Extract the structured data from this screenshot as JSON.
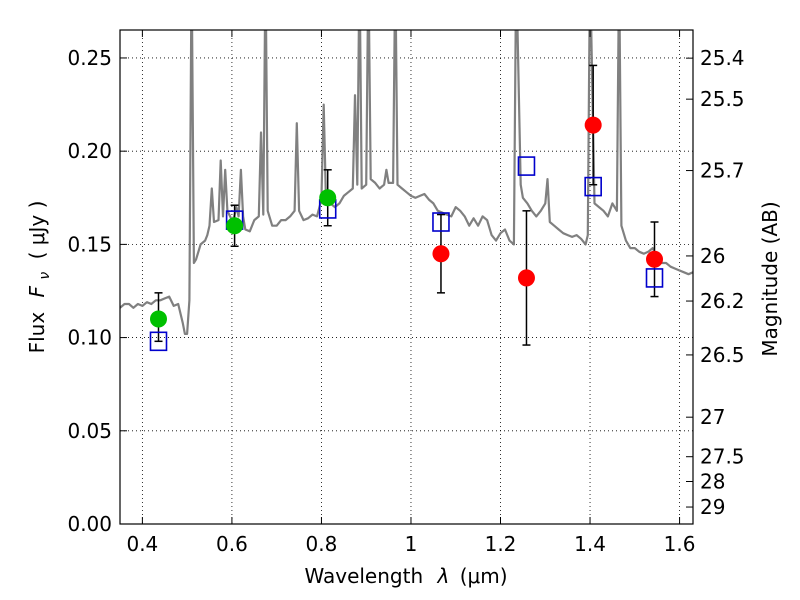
{
  "chart_data": {
    "type": "scatter",
    "xlabel_text": "Wavelength",
    "xlabel_symbol": "λ",
    "xlabel_unit": "(μm)",
    "ylabel_text": "Flux",
    "ylabel_symbol": "F",
    "ylabel_symbol_sub": "ν",
    "ylabel_unit": "( μJy )",
    "y2label": "Magnitude (AB)",
    "xlim": [
      0.35,
      1.63
    ],
    "ylim": [
      0.0,
      0.265
    ],
    "grid": true,
    "legend": "none",
    "x_ticks": [
      0.4,
      0.6,
      0.8,
      1.0,
      1.2,
      1.4,
      1.6
    ],
    "x_tick_labels": [
      "0.4",
      "0.6",
      "0.8",
      "1",
      "1.2",
      "1.4",
      "1.6"
    ],
    "y_ticks": [
      0.0,
      0.05,
      0.1,
      0.15,
      0.2,
      0.25
    ],
    "y_tick_labels": [
      "0.00",
      "0.05",
      "0.10",
      "0.15",
      "0.20",
      "0.25"
    ],
    "y2_ticks": [
      {
        "label": "25.4",
        "flux": 0.2499
      },
      {
        "label": "25.5",
        "flux": 0.2279
      },
      {
        "label": "25.7",
        "flux": 0.1896
      },
      {
        "label": "26",
        "flux": 0.1438
      },
      {
        "label": "26.2",
        "flux": 0.1196
      },
      {
        "label": "26.5",
        "flux": 0.0907
      },
      {
        "label": "27",
        "flux": 0.0573
      },
      {
        "label": "27.5",
        "flux": 0.0361
      },
      {
        "label": "28",
        "flux": 0.0228
      },
      {
        "label": "29",
        "flux": 0.0091
      }
    ],
    "series": [
      {
        "kind": "model-spectrum",
        "color": "#808080",
        "points": [
          [
            0.35,
            0.116
          ],
          [
            0.36,
            0.118
          ],
          [
            0.37,
            0.118
          ],
          [
            0.38,
            0.116
          ],
          [
            0.39,
            0.118
          ],
          [
            0.4,
            0.117
          ],
          [
            0.41,
            0.119
          ],
          [
            0.42,
            0.118
          ],
          [
            0.43,
            0.12
          ],
          [
            0.44,
            0.12
          ],
          [
            0.45,
            0.121
          ],
          [
            0.46,
            0.122
          ],
          [
            0.47,
            0.117
          ],
          [
            0.48,
            0.118
          ],
          [
            0.49,
            0.108
          ],
          [
            0.495,
            0.102
          ],
          [
            0.5,
            0.102
          ],
          [
            0.505,
            0.12
          ],
          [
            0.51,
            0.3
          ],
          [
            0.515,
            0.14
          ],
          [
            0.52,
            0.142
          ],
          [
            0.53,
            0.15
          ],
          [
            0.54,
            0.152
          ],
          [
            0.545,
            0.155
          ],
          [
            0.55,
            0.16
          ],
          [
            0.555,
            0.18
          ],
          [
            0.56,
            0.162
          ],
          [
            0.57,
            0.163
          ],
          [
            0.575,
            0.195
          ],
          [
            0.58,
            0.165
          ],
          [
            0.585,
            0.19
          ],
          [
            0.59,
            0.168
          ],
          [
            0.6,
            0.163
          ],
          [
            0.605,
            0.165
          ],
          [
            0.61,
            0.17
          ],
          [
            0.615,
            0.165
          ],
          [
            0.62,
            0.19
          ],
          [
            0.625,
            0.165
          ],
          [
            0.63,
            0.158
          ],
          [
            0.64,
            0.157
          ],
          [
            0.65,
            0.163
          ],
          [
            0.66,
            0.165
          ],
          [
            0.665,
            0.21
          ],
          [
            0.67,
            0.166
          ],
          [
            0.675,
            0.3
          ],
          [
            0.68,
            0.168
          ],
          [
            0.69,
            0.16
          ],
          [
            0.7,
            0.16
          ],
          [
            0.71,
            0.163
          ],
          [
            0.72,
            0.163
          ],
          [
            0.73,
            0.165
          ],
          [
            0.74,
            0.168
          ],
          [
            0.745,
            0.215
          ],
          [
            0.75,
            0.168
          ],
          [
            0.76,
            0.163
          ],
          [
            0.77,
            0.164
          ],
          [
            0.78,
            0.166
          ],
          [
            0.79,
            0.165
          ],
          [
            0.8,
            0.174
          ],
          [
            0.805,
            0.225
          ],
          [
            0.81,
            0.175
          ],
          [
            0.82,
            0.172
          ],
          [
            0.83,
            0.17
          ],
          [
            0.84,
            0.172
          ],
          [
            0.85,
            0.176
          ],
          [
            0.86,
            0.178
          ],
          [
            0.87,
            0.18
          ],
          [
            0.875,
            0.23
          ],
          [
            0.88,
            0.182
          ],
          [
            0.885,
            0.3
          ],
          [
            0.89,
            0.18
          ],
          [
            0.9,
            0.182
          ],
          [
            0.905,
            0.3
          ],
          [
            0.91,
            0.185
          ],
          [
            0.92,
            0.183
          ],
          [
            0.93,
            0.18
          ],
          [
            0.94,
            0.182
          ],
          [
            0.945,
            0.19
          ],
          [
            0.95,
            0.183
          ],
          [
            0.96,
            0.183
          ],
          [
            0.965,
            0.3
          ],
          [
            0.97,
            0.182
          ],
          [
            0.98,
            0.18
          ],
          [
            0.99,
            0.178
          ],
          [
            1.0,
            0.176
          ],
          [
            1.01,
            0.175
          ],
          [
            1.02,
            0.176
          ],
          [
            1.03,
            0.177
          ],
          [
            1.04,
            0.174
          ],
          [
            1.05,
            0.172
          ],
          [
            1.06,
            0.168
          ],
          [
            1.07,
            0.167
          ],
          [
            1.08,
            0.166
          ],
          [
            1.09,
            0.165
          ],
          [
            1.1,
            0.17
          ],
          [
            1.11,
            0.168
          ],
          [
            1.12,
            0.165
          ],
          [
            1.13,
            0.16
          ],
          [
            1.14,
            0.164
          ],
          [
            1.15,
            0.16
          ],
          [
            1.16,
            0.165
          ],
          [
            1.17,
            0.163
          ],
          [
            1.18,
            0.155
          ],
          [
            1.19,
            0.152
          ],
          [
            1.2,
            0.156
          ],
          [
            1.21,
            0.158
          ],
          [
            1.22,
            0.152
          ],
          [
            1.23,
            0.15
          ],
          [
            1.235,
            0.3
          ],
          [
            1.245,
            0.182
          ],
          [
            1.25,
            0.175
          ],
          [
            1.26,
            0.172
          ],
          [
            1.27,
            0.168
          ],
          [
            1.28,
            0.165
          ],
          [
            1.29,
            0.168
          ],
          [
            1.3,
            0.172
          ],
          [
            1.305,
            0.185
          ],
          [
            1.31,
            0.162
          ],
          [
            1.32,
            0.16
          ],
          [
            1.33,
            0.158
          ],
          [
            1.34,
            0.156
          ],
          [
            1.35,
            0.155
          ],
          [
            1.36,
            0.154
          ],
          [
            1.37,
            0.155
          ],
          [
            1.38,
            0.153
          ],
          [
            1.39,
            0.15
          ],
          [
            1.395,
            0.155
          ],
          [
            1.4,
            0.3
          ],
          [
            1.41,
            0.172
          ],
          [
            1.42,
            0.17
          ],
          [
            1.43,
            0.168
          ],
          [
            1.44,
            0.165
          ],
          [
            1.45,
            0.172
          ],
          [
            1.46,
            0.168
          ],
          [
            1.465,
            0.3
          ],
          [
            1.47,
            0.16
          ],
          [
            1.48,
            0.152
          ],
          [
            1.49,
            0.148
          ],
          [
            1.5,
            0.148
          ],
          [
            1.51,
            0.146
          ],
          [
            1.52,
            0.145
          ],
          [
            1.53,
            0.146
          ],
          [
            1.54,
            0.148
          ],
          [
            1.55,
            0.143
          ],
          [
            1.56,
            0.14
          ],
          [
            1.57,
            0.14
          ],
          [
            1.58,
            0.138
          ],
          [
            1.59,
            0.137
          ],
          [
            1.6,
            0.136
          ],
          [
            1.61,
            0.135
          ],
          [
            1.62,
            0.134
          ],
          [
            1.63,
            0.135
          ]
        ]
      },
      {
        "kind": "observed-green",
        "color": "#00c000",
        "points": [
          {
            "x": 0.436,
            "y": 0.11,
            "ylo": 0.098,
            "yhi": 0.124
          },
          {
            "x": 0.606,
            "y": 0.16,
            "ylo": 0.149,
            "yhi": 0.171
          },
          {
            "x": 0.814,
            "y": 0.175,
            "ylo": 0.16,
            "yhi": 0.19
          }
        ]
      },
      {
        "kind": "observed-red",
        "color": "#ff0000",
        "points": [
          {
            "x": 1.067,
            "y": 0.145,
            "ylo": 0.124,
            "yhi": 0.166
          },
          {
            "x": 1.258,
            "y": 0.132,
            "ylo": 0.096,
            "yhi": 0.168
          },
          {
            "x": 1.407,
            "y": 0.214,
            "ylo": 0.182,
            "yhi": 0.246
          },
          {
            "x": 1.544,
            "y": 0.142,
            "ylo": 0.122,
            "yhi": 0.162
          }
        ]
      },
      {
        "kind": "model-photometry",
        "color": "#0000cc",
        "points": [
          {
            "x": 0.436,
            "y": 0.098
          },
          {
            "x": 0.606,
            "y": 0.163
          },
          {
            "x": 0.814,
            "y": 0.169
          },
          {
            "x": 1.067,
            "y": 0.162
          },
          {
            "x": 1.258,
            "y": 0.192
          },
          {
            "x": 1.407,
            "y": 0.181
          },
          {
            "x": 1.544,
            "y": 0.132
          }
        ]
      }
    ]
  }
}
